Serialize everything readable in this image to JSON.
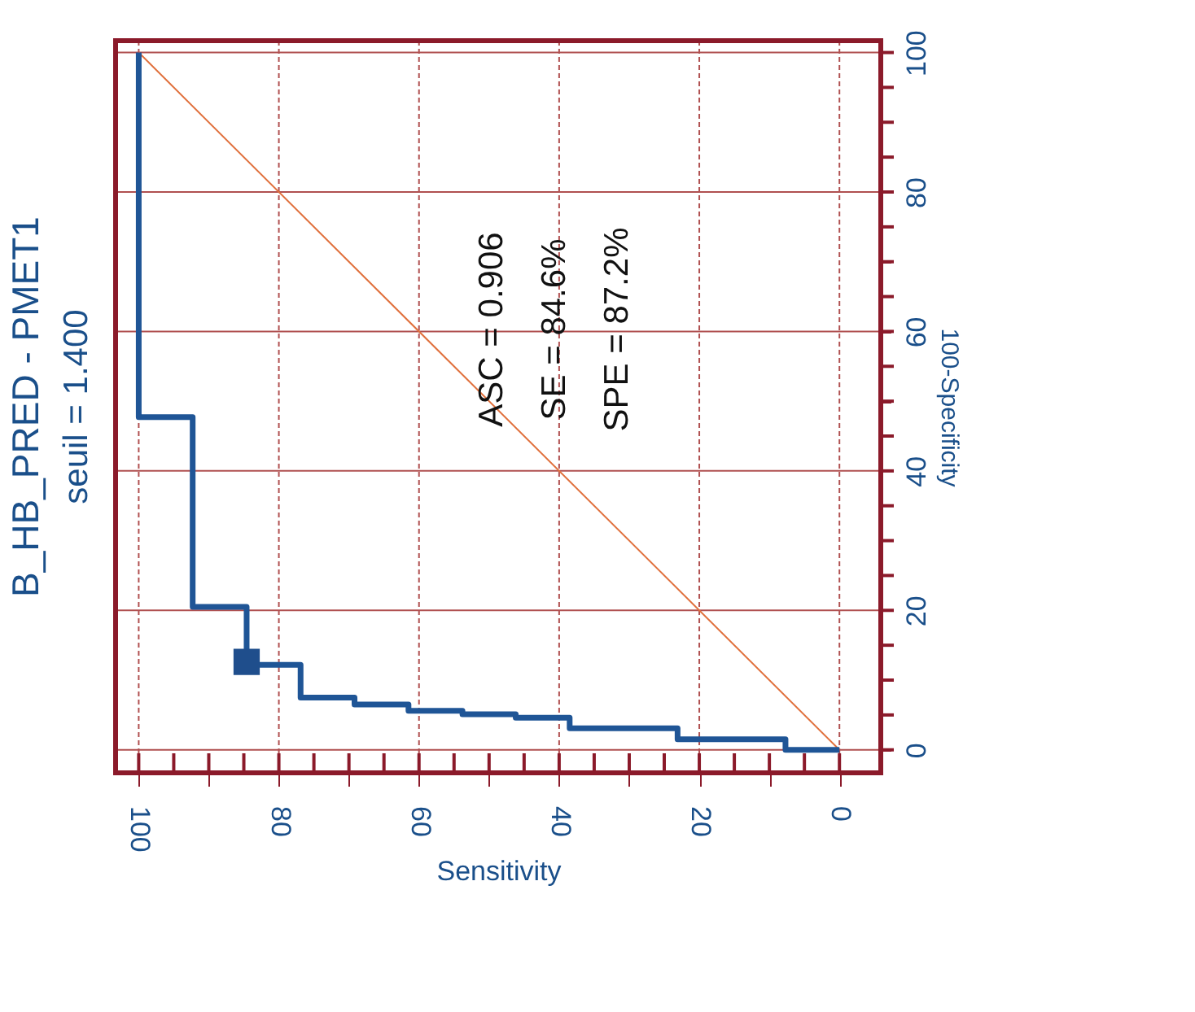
{
  "chart_data": {
    "type": "line",
    "title": "B_HB_PRED - PMET1",
    "subtitle": "seuil = 1.400",
    "xlabel": "Sensitivity",
    "ylabel": "100-Specificity",
    "xlim": [
      103.3,
      -5.9
    ],
    "ylim": [
      -3.3,
      101.7
    ],
    "xticks": [
      100,
      {
        "value": 95,
        "label": null
      },
      {
        "value": 90,
        "label": null
      },
      {
        "value": 85,
        "label": null
      },
      80,
      {
        "value": 75,
        "label": null
      },
      {
        "value": 70,
        "label": null
      },
      {
        "value": 65,
        "label": null
      },
      60,
      {
        "value": 55,
        "label": null
      },
      {
        "value": 50,
        "label": null
      },
      {
        "value": 45,
        "label": null
      },
      40,
      {
        "value": 35,
        "label": null
      },
      {
        "value": 30,
        "label": null
      },
      {
        "value": 25,
        "label": null
      },
      20,
      {
        "value": 15,
        "label": null
      },
      {
        "value": 10,
        "label": null
      },
      {
        "value": 5,
        "label": null
      },
      0
    ],
    "yticks": [
      0,
      {
        "value": 5,
        "label": null
      },
      {
        "value": 10,
        "label": null
      },
      {
        "value": 15,
        "label": null
      },
      20,
      {
        "value": 25,
        "label": null
      },
      {
        "value": 30,
        "label": null
      },
      {
        "value": 35,
        "label": null
      },
      40,
      {
        "value": 45,
        "label": null
      },
      {
        "value": 50,
        "label": null
      },
      {
        "value": 55,
        "label": null
      },
      60,
      {
        "value": 65,
        "label": null
      },
      {
        "value": 70,
        "label": null
      },
      {
        "value": 75,
        "label": null
      },
      80,
      {
        "value": 85,
        "label": null
      },
      {
        "value": 90,
        "label": null
      },
      {
        "value": 95,
        "label": null
      },
      100
    ],
    "grid": true,
    "annotations": [
      "ASC = 0.906",
      "SE = 84.6%",
      "SPE = 87.2%"
    ],
    "series": [
      {
        "type": "line",
        "color": "#e0703c",
        "x": [
          100,
          0
        ],
        "values": [
          100,
          0
        ]
      },
      {
        "type": "line",
        "color": "#1f5596",
        "x": [
          100,
          100,
          92.3,
          92.3,
          84.6,
          84.6,
          76.9,
          76.9,
          69.2,
          69.2,
          61.5,
          61.5,
          53.8,
          53.8,
          46.2,
          46.2,
          38.5,
          38.5,
          23.1,
          23.1,
          7.7,
          7.7,
          0
        ],
        "values": [
          100,
          47.7,
          47.7,
          20.5,
          20.5,
          12.2,
          12.2,
          7.5,
          7.5,
          6.5,
          6.5,
          5.6,
          5.6,
          5.1,
          5.1,
          4.6,
          4.6,
          3.1,
          3.1,
          1.5,
          1.5,
          0,
          0
        ]
      },
      {
        "type": "scatter",
        "color": "#1f4e8c",
        "marker": "square",
        "x": [
          84.6
        ],
        "values": [
          12.6
        ]
      }
    ]
  }
}
